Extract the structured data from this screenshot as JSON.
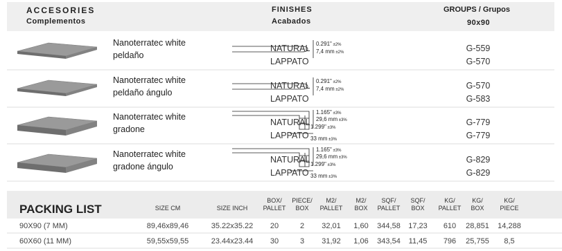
{
  "header": {
    "accessories": "ACCESORIES",
    "accessories_es": "Complementos",
    "finishes": "FINISHES",
    "finishes_es": "Acabados",
    "groups": "GROUPS / Grupos",
    "size": "90x90"
  },
  "accessories": [
    {
      "name": [
        "Nanoterratec white",
        "peldaño"
      ],
      "dimensions": [
        {
          "text": "0.291\"",
          "tolerance": "±2%"
        },
        {
          "text": "7,4 mm",
          "tolerance": "±2%"
        }
      ],
      "finishes": [
        "NATURAL",
        "LAPPATO"
      ],
      "groups": [
        "G-559",
        "G-570"
      ]
    },
    {
      "name": [
        "Nanoterratec white",
        "peldaño ángulo"
      ],
      "dimensions": [
        {
          "text": "0.291\"",
          "tolerance": "±2%"
        },
        {
          "text": "7,4 mm",
          "tolerance": "±2%"
        }
      ],
      "finishes": [
        "NATURAL",
        "LAPPATO"
      ],
      "groups": [
        "G-570",
        "G-583"
      ]
    },
    {
      "name": [
        "Nanoterratec white",
        "gradone"
      ],
      "dimensions": [
        {
          "text": "1.165\"",
          "tolerance": "±3%"
        },
        {
          "text": "29,6 mm",
          "tolerance": "±3%"
        },
        {
          "text": "1.299\"",
          "tolerance": "±3%"
        },
        {
          "text": "33 mm",
          "tolerance": "±3%"
        }
      ],
      "finishes": [
        "NATURAL",
        "LAPPATO"
      ],
      "groups": [
        "G-779",
        "G-779"
      ]
    },
    {
      "name": [
        "Nanoterratec white",
        "gradone ángulo"
      ],
      "dimensions": [
        {
          "text": "1.165\"",
          "tolerance": "±3%"
        },
        {
          "text": "29,6 mm",
          "tolerance": "±3%"
        },
        {
          "text": "1.299\"",
          "tolerance": "±3%"
        },
        {
          "text": "33 mm",
          "tolerance": "±3%"
        }
      ],
      "finishes": [
        "NATURAL",
        "LAPPATO"
      ],
      "groups": [
        "G-829",
        "G-829"
      ]
    }
  ],
  "packing_list": {
    "title": "PACKING LIST",
    "columns": [
      [
        "SIZE CM"
      ],
      [
        "SIZE INCH"
      ],
      [
        "BOX/",
        "PALLET"
      ],
      [
        "PIECE/",
        "BOX"
      ],
      [
        "M2/",
        "PALLET"
      ],
      [
        "M2/",
        "BOX"
      ],
      [
        "SQF/",
        "PALLET"
      ],
      [
        "SQF/",
        "BOX"
      ],
      [
        "KG/",
        "PALLET"
      ],
      [
        "KG/",
        "BOX"
      ],
      [
        "KG/",
        "PIECE"
      ]
    ],
    "rows": [
      [
        "90X90 (7 MM)",
        "89,46x89,46",
        "35.22x35.22",
        "20",
        "2",
        "32,01",
        "1,60",
        "344,58",
        "17,23",
        "610",
        "28,851",
        "14,288"
      ],
      [
        "60X60 (11 MM)",
        "59,55x59,55",
        "23.44x23.44",
        "30",
        "3",
        "31,92",
        "1,06",
        "343,54",
        "11,45",
        "796",
        "25,755",
        "8,5"
      ]
    ]
  }
}
